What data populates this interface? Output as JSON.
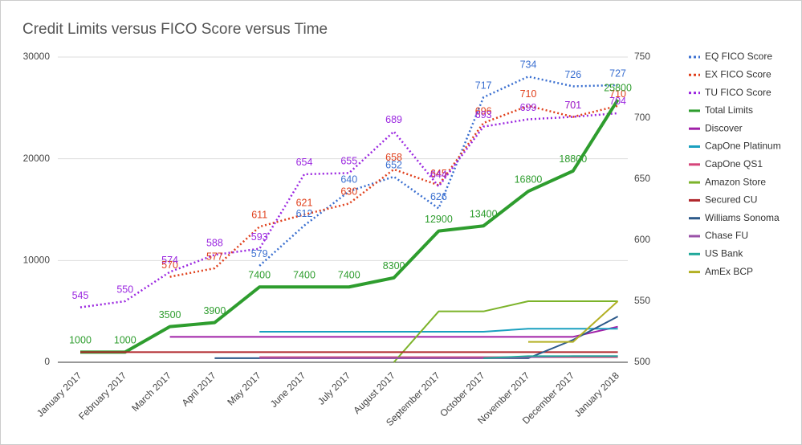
{
  "chart_data": {
    "type": "line",
    "title": "Credit Limits versus FICO Score versus Time",
    "categories": [
      "January 2017",
      "February 2017",
      "March 2017",
      "April 2017",
      "May 2017",
      "June 2017",
      "July 2017",
      "August 2017",
      "September 2017",
      "October 2017",
      "November 2017",
      "December 2017",
      "January 2018"
    ],
    "ylim": [
      0,
      30000
    ],
    "yticks": [
      0,
      10000,
      20000,
      30000
    ],
    "y2lim": [
      500,
      750
    ],
    "y2ticks": [
      500,
      550,
      600,
      650,
      700,
      750
    ],
    "grid": true,
    "legend": "right",
    "series": [
      {
        "name": "EQ FICO Score",
        "color": "#3a6fd0",
        "axis": "y2",
        "dash": true,
        "labels": true,
        "values": [
          null,
          null,
          null,
          null,
          579,
          612,
          640,
          652,
          626,
          717,
          734,
          726,
          727
        ]
      },
      {
        "name": "EX FICO Score",
        "color": "#e0401c",
        "axis": "y2",
        "dash": true,
        "labels": true,
        "values": [
          null,
          null,
          570,
          577,
          611,
          621,
          630,
          658,
          645,
          696,
          710,
          701,
          710
        ]
      },
      {
        "name": "TU FICO Score",
        "color": "#9b27e0",
        "axis": "y2",
        "dash": true,
        "labels": true,
        "values": [
          545,
          550,
          574,
          588,
          593,
          654,
          655,
          689,
          644,
          693,
          699,
          701,
          704
        ]
      },
      {
        "name": "Total Limits",
        "color": "#2e9d2e",
        "labels": true,
        "values": [
          1000,
          1000,
          3500,
          3900,
          7400,
          7400,
          7400,
          8300,
          12900,
          13400,
          16800,
          18800,
          25800
        ]
      },
      {
        "name": "Discover",
        "color": "#a020a8",
        "values": [
          null,
          null,
          2500,
          2500,
          2500,
          2500,
          2500,
          2500,
          2500,
          2500,
          2500,
          2500,
          3500
        ]
      },
      {
        "name": "CapOne Platinum",
        "color": "#1aa0bf",
        "values": [
          null,
          null,
          null,
          null,
          3000,
          3000,
          3000,
          3000,
          3000,
          3000,
          3300,
          3300,
          3300
        ]
      },
      {
        "name": "CapOne QS1",
        "color": "#d6457a",
        "values": [
          null,
          null,
          null,
          null,
          500,
          500,
          500,
          500,
          500,
          500,
          500,
          500,
          500
        ]
      },
      {
        "name": "Amazon Store",
        "color": "#7cb32a",
        "values": [
          null,
          null,
          null,
          null,
          null,
          null,
          null,
          0,
          5000,
          5000,
          6000,
          6000,
          6000
        ]
      },
      {
        "name": "Secured CU",
        "color": "#b0262b",
        "values": [
          1000,
          1000,
          1000,
          1000,
          1000,
          1000,
          1000,
          1000,
          1000,
          1000,
          1000,
          1000,
          1000
        ]
      },
      {
        "name": "Williams Sonoma",
        "color": "#2d5a8a",
        "values": [
          null,
          null,
          null,
          400,
          400,
          400,
          400,
          400,
          400,
          400,
          400,
          2200,
          4500
        ]
      },
      {
        "name": "Chase FU",
        "color": "#9a52a8",
        "values": [
          null,
          null,
          null,
          null,
          400,
          400,
          400,
          400,
          400,
          400,
          500,
          600,
          600
        ]
      },
      {
        "name": "US Bank",
        "color": "#20a89a",
        "values": [
          null,
          null,
          null,
          null,
          null,
          null,
          null,
          null,
          null,
          400,
          600,
          600,
          600
        ]
      },
      {
        "name": "AmEx BCP",
        "color": "#b3b024",
        "values": [
          null,
          null,
          null,
          null,
          null,
          null,
          null,
          null,
          null,
          null,
          2000,
          2000,
          6000
        ]
      }
    ]
  }
}
